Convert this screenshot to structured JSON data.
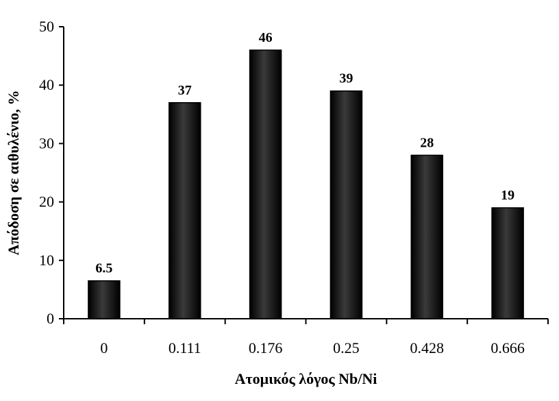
{
  "chart_data": {
    "type": "bar",
    "categories": [
      "0",
      "0.111",
      "0.176",
      "0.25",
      "0.428",
      "0.666"
    ],
    "values": [
      6.5,
      37,
      46,
      39,
      28,
      19
    ],
    "data_labels": [
      "6.5",
      "37",
      "46",
      "39",
      "28",
      "19"
    ],
    "xlabel": "Ατομικός λόγος Nb/Ni",
    "ylabel": "Απόδοση σε αιθυλένιο, %",
    "ylim": [
      0,
      50
    ],
    "yticks": [
      0,
      10,
      20,
      30,
      40,
      50
    ],
    "grid": false,
    "legend": "none",
    "bar_color": "#111111"
  }
}
